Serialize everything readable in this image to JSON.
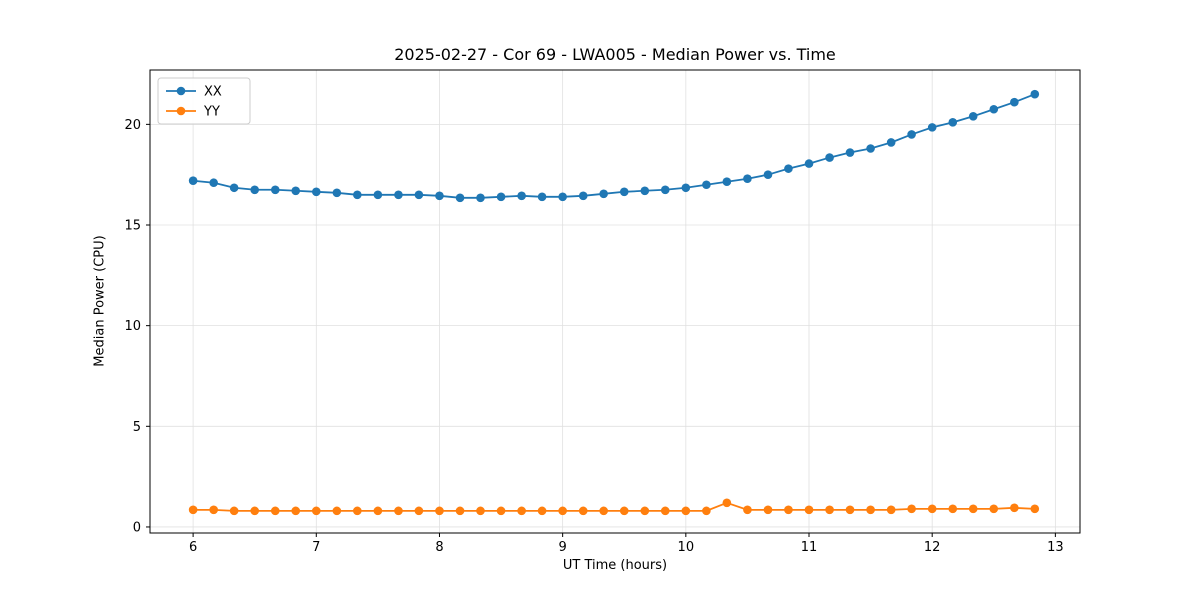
{
  "chart_data": {
    "type": "line",
    "title": "2025-02-27 - Cor 69 - LWA005 - Median Power vs. Time",
    "xlabel": "UT Time (hours)",
    "ylabel": "Median Power (CPU)",
    "xlim": [
      5.65,
      13.2
    ],
    "ylim": [
      -0.3,
      22.7
    ],
    "xticks": [
      6,
      7,
      8,
      9,
      10,
      11,
      12,
      13
    ],
    "yticks": [
      0,
      5,
      10,
      15,
      20
    ],
    "grid": true,
    "legend_position": "upper left",
    "x": [
      6.0,
      6.167,
      6.333,
      6.5,
      6.667,
      6.833,
      7.0,
      7.167,
      7.333,
      7.5,
      7.667,
      7.833,
      8.0,
      8.167,
      8.333,
      8.5,
      8.667,
      8.833,
      9.0,
      9.167,
      9.333,
      9.5,
      9.667,
      9.833,
      10.0,
      10.167,
      10.333,
      10.5,
      10.667,
      10.833,
      11.0,
      11.167,
      11.333,
      11.5,
      11.667,
      11.833,
      12.0,
      12.167,
      12.333,
      12.5,
      12.667,
      12.833
    ],
    "series": [
      {
        "name": "XX",
        "color": "#1f77b4",
        "values": [
          17.2,
          17.1,
          16.85,
          16.75,
          16.75,
          16.7,
          16.65,
          16.6,
          16.5,
          16.5,
          16.5,
          16.5,
          16.45,
          16.35,
          16.35,
          16.4,
          16.45,
          16.4,
          16.4,
          16.45,
          16.55,
          16.65,
          16.7,
          16.75,
          16.85,
          17.0,
          17.15,
          17.3,
          17.5,
          17.8,
          18.05,
          18.35,
          18.6,
          18.8,
          19.1,
          19.5,
          19.85,
          20.1,
          20.4,
          20.75,
          21.1,
          21.5
        ]
      },
      {
        "name": "YY",
        "color": "#ff7f0e",
        "values": [
          0.85,
          0.85,
          0.8,
          0.8,
          0.8,
          0.8,
          0.8,
          0.8,
          0.8,
          0.8,
          0.8,
          0.8,
          0.8,
          0.8,
          0.8,
          0.8,
          0.8,
          0.8,
          0.8,
          0.8,
          0.8,
          0.8,
          0.8,
          0.8,
          0.8,
          0.8,
          1.2,
          0.85,
          0.85,
          0.85,
          0.85,
          0.85,
          0.85,
          0.85,
          0.85,
          0.9,
          0.9,
          0.9,
          0.9,
          0.9,
          0.95,
          0.9
        ]
      }
    ]
  }
}
